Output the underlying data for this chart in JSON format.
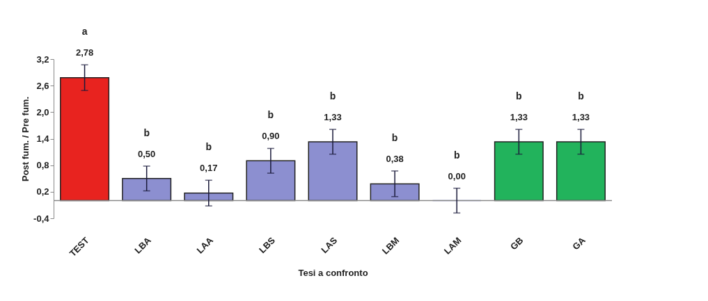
{
  "chart_data": {
    "type": "bar",
    "xlabel": "Tesi a confronto",
    "ylabel": "Post fum. / Pre fum.",
    "categories": [
      "TEST",
      "LBA",
      "LAA",
      "LBS",
      "LAS",
      "LBM",
      "LAM",
      "GB",
      "GA"
    ],
    "values": [
      2.78,
      0.5,
      0.17,
      0.9,
      1.33,
      0.38,
      0.0,
      1.33,
      1.33
    ],
    "value_labels": [
      "2,78",
      "0,50",
      "0,17",
      "0,90",
      "1,33",
      "0,38",
      "0,00",
      "1,33",
      "1,33"
    ],
    "errors": [
      0.29,
      0.28,
      0.29,
      0.28,
      0.28,
      0.29,
      0.28,
      0.28,
      0.28
    ],
    "colors": [
      "#e8231f",
      "#8c8fd0",
      "#8c8fd0",
      "#8c8fd0",
      "#8c8fd0",
      "#8c8fd0",
      "#8c8fd0",
      "#22b35c",
      "#22b35c"
    ],
    "ylim": [
      -0.4,
      3.2
    ],
    "yticks": [
      {
        "value": -0.4,
        "label": "-0,4"
      },
      {
        "value": 0.2,
        "label": "0,2"
      },
      {
        "value": 0.8,
        "label": "0,8"
      },
      {
        "value": 1.4,
        "label": "1,4"
      },
      {
        "value": 2.0,
        "label": "2,0"
      },
      {
        "value": 2.6,
        "label": "2,6"
      },
      {
        "value": 3.2,
        "label": "3,2"
      }
    ],
    "annotations": [
      "a",
      "b",
      "b",
      "b",
      "b",
      "b",
      "b",
      "b",
      "b"
    ],
    "grid": false
  }
}
